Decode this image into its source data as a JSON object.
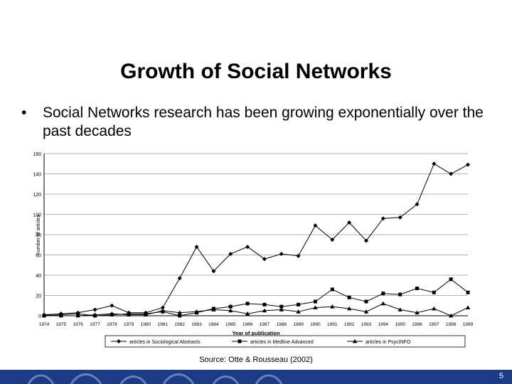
{
  "slide": {
    "title": "Growth of Social Networks",
    "bullet_symbol": "•",
    "bullet": "Social Networks research has been growing exponentially over the past decades",
    "source": "Source: Otte & Rousseau (2002)",
    "page_number": "5"
  },
  "colors": {
    "footer": "#1b3b87",
    "line": "#000000"
  },
  "chart_data": {
    "type": "line",
    "xlabel": "Year of publication",
    "ylabel": "number of articles",
    "ylim": [
      0,
      160
    ],
    "yticks": [
      0,
      20,
      40,
      60,
      80,
      100,
      120,
      140,
      160
    ],
    "categories": [
      "1974",
      "1975",
      "1976",
      "1977",
      "1978",
      "1979",
      "1980",
      "1981",
      "1982",
      "1983",
      "1984",
      "1985",
      "1986",
      "1987",
      "1988",
      "1989",
      "1990",
      "1991",
      "1992",
      "1993",
      "1994",
      "1995",
      "1996",
      "1997",
      "1998",
      "1999"
    ],
    "grid": "horizontal",
    "legend_position": "bottom",
    "series": [
      {
        "name": "articles in Sociological Abstracts",
        "marker": "diamond",
        "values": [
          1,
          2,
          3,
          6,
          10,
          3,
          3,
          8,
          37,
          68,
          44,
          61,
          68,
          56,
          61,
          59,
          89,
          75,
          92,
          74,
          96,
          97,
          110,
          150,
          140,
          149
        ]
      },
      {
        "name": "articles in Medline Advanced",
        "marker": "square",
        "values": [
          0,
          1,
          2,
          0,
          1,
          2,
          2,
          4,
          0,
          3,
          7,
          9,
          12,
          11,
          9,
          11,
          14,
          26,
          18,
          14,
          22,
          21,
          27,
          23,
          36,
          23
        ]
      },
      {
        "name": "articles in PsycINFO",
        "marker": "triangle",
        "values": [
          1,
          0,
          0,
          1,
          2,
          1,
          1,
          5,
          3,
          4,
          6,
          5,
          2,
          5,
          6,
          4,
          8,
          9,
          7,
          4,
          12,
          6,
          3,
          7,
          0,
          8
        ]
      }
    ]
  }
}
